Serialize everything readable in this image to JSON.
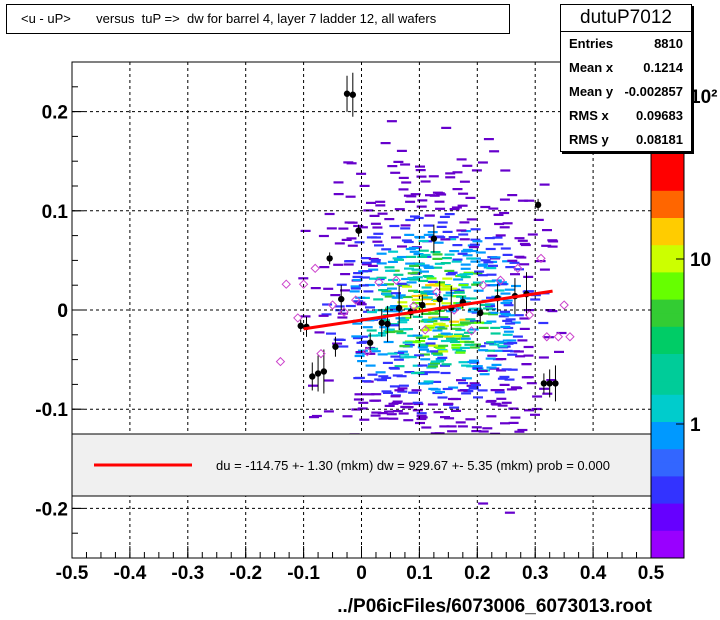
{
  "title": "<u - uP>       versus  tuP =>  dw for barrel 4, layer 7 ladder 12, all wafers",
  "stats": {
    "name": "dutuP7012",
    "rows": [
      {
        "label": "Entries",
        "value": "8810"
      },
      {
        "label": "Mean x",
        "value": "0.1214"
      },
      {
        "label": "Mean y",
        "value": "-0.002857"
      },
      {
        "label": "RMS x",
        "value": "0.09683"
      },
      {
        "label": "RMS y",
        "value": "0.08181"
      }
    ]
  },
  "legend": {
    "text": "du = -114.75 +-  1.30 (mkm) dw =  929.67 +-  5.35 (mkm) prob = 0.000"
  },
  "xlabel": "../P06icFiles/6073006_6073013.root",
  "colors": {
    "fit_line": "#ff0000",
    "profile_points": "#000000",
    "open_markers": "#cc44cc"
  },
  "chart_data": {
    "type": "heatmap",
    "title": "<u - uP>       versus  tuP =>  dw for barrel 4, layer 7 ladder 12, all wafers",
    "xlabel": "../P06icFiles/6073006_6073013.root",
    "ylabel": "",
    "xlim": [
      -0.5,
      0.5
    ],
    "ylim": [
      -0.25,
      0.25
    ],
    "x_ticks": [
      "-0.5",
      "-0.4",
      "-0.3",
      "-0.2",
      "-0.1",
      "0",
      "0.1",
      "0.2",
      "0.3",
      "0.4",
      "0.5"
    ],
    "y_ticks": [
      "-0.2",
      "-0.1",
      "0",
      "0.1",
      "0.2"
    ],
    "z_scale": "log",
    "z_ticks": [
      "1",
      "10",
      "10²"
    ],
    "grid": true,
    "fit_line": {
      "x": [
        -0.1,
        0.33
      ],
      "y": [
        -0.019,
        0.019
      ]
    },
    "profile_points": [
      {
        "x": -0.105,
        "y": -0.016
      },
      {
        "x": -0.095,
        "y": -0.017
      },
      {
        "x": -0.085,
        "y": -0.067
      },
      {
        "x": -0.075,
        "y": -0.064
      },
      {
        "x": -0.065,
        "y": -0.062
      },
      {
        "x": -0.055,
        "y": 0.052
      },
      {
        "x": -0.045,
        "y": -0.037
      },
      {
        "x": -0.035,
        "y": 0.011
      },
      {
        "x": -0.025,
        "y": 0.218
      },
      {
        "x": -0.015,
        "y": 0.217
      },
      {
        "x": -0.005,
        "y": 0.08
      },
      {
        "x": 0.015,
        "y": -0.033
      },
      {
        "x": 0.035,
        "y": -0.013
      },
      {
        "x": 0.045,
        "y": -0.014
      },
      {
        "x": 0.065,
        "y": 0.002
      },
      {
        "x": 0.085,
        "y": -0.002
      },
      {
        "x": 0.105,
        "y": 0.005
      },
      {
        "x": 0.125,
        "y": 0.072
      },
      {
        "x": 0.135,
        "y": 0.011
      },
      {
        "x": 0.155,
        "y": 0.002
      },
      {
        "x": 0.175,
        "y": 0.008
      },
      {
        "x": 0.205,
        "y": -0.003
      },
      {
        "x": 0.235,
        "y": 0.012
      },
      {
        "x": 0.265,
        "y": 0.014
      },
      {
        "x": 0.285,
        "y": 0.016
      },
      {
        "x": 0.305,
        "y": 0.106
      },
      {
        "x": 0.315,
        "y": -0.074
      },
      {
        "x": 0.325,
        "y": -0.074
      },
      {
        "x": 0.335,
        "y": -0.074
      }
    ],
    "open_markers": [
      {
        "x": -0.13,
        "y": 0.026
      },
      {
        "x": -0.11,
        "y": -0.008
      },
      {
        "x": -0.1,
        "y": 0.026
      },
      {
        "x": -0.08,
        "y": 0.042
      },
      {
        "x": -0.07,
        "y": -0.044
      },
      {
        "x": -0.05,
        "y": 0.005
      },
      {
        "x": -0.03,
        "y": -0.002
      },
      {
        "x": -0.01,
        "y": 0.01
      },
      {
        "x": 0.01,
        "y": -0.042
      },
      {
        "x": 0.03,
        "y": 0.028
      },
      {
        "x": 0.06,
        "y": 0.03
      },
      {
        "x": 0.09,
        "y": 0.004
      },
      {
        "x": 0.11,
        "y": -0.02
      },
      {
        "x": 0.13,
        "y": 0.018
      },
      {
        "x": 0.16,
        "y": 0.0
      },
      {
        "x": 0.19,
        "y": -0.021
      },
      {
        "x": 0.21,
        "y": 0.025
      },
      {
        "x": 0.24,
        "y": 0.03
      },
      {
        "x": 0.27,
        "y": 0.042
      },
      {
        "x": 0.29,
        "y": -0.005
      },
      {
        "x": 0.31,
        "y": 0.052
      },
      {
        "x": 0.32,
        "y": -0.027
      },
      {
        "x": 0.34,
        "y": -0.027
      },
      {
        "x": 0.36,
        "y": -0.027
      },
      {
        "x": 0.35,
        "y": 0.005
      },
      {
        "x": -0.14,
        "y": -0.052
      }
    ]
  }
}
